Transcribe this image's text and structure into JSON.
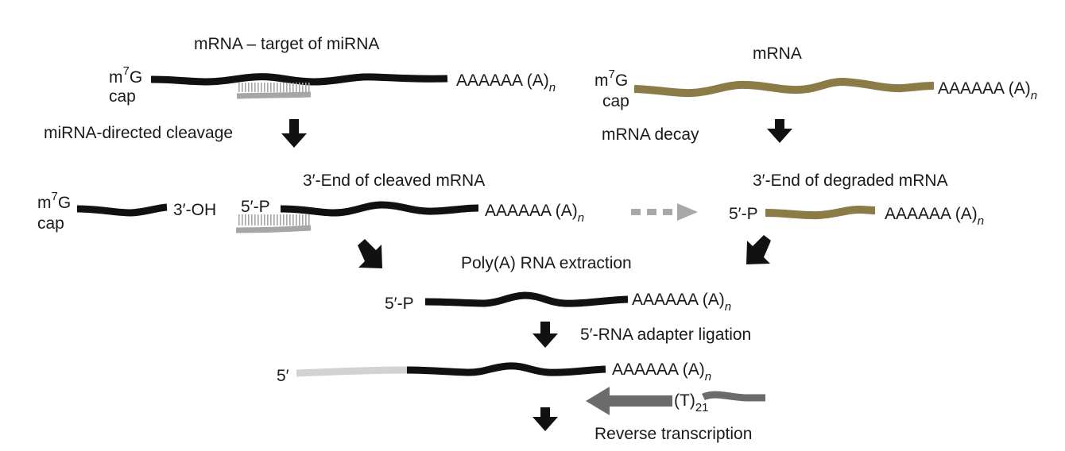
{
  "colors": {
    "target_mrna": "#111111",
    "decayed_mrna": "#8b7b47",
    "mirna": "#a6a6a6",
    "adapter": "#d2d2d2",
    "primer": "#6b6b6b",
    "arrow": "#111111",
    "dashed_arrow": "#a8a8a8",
    "text": "#1a1a1a"
  },
  "top_left": {
    "title": "mRNA – target of miRNA",
    "cap_m": "m",
    "cap_sup": "7",
    "cap_g": "G",
    "cap_word": "cap",
    "polya": "AAAAAA (A)",
    "polya_sub": "n",
    "step": "miRNA-directed cleavage"
  },
  "top_right": {
    "title": "mRNA",
    "cap_m": "m",
    "cap_sup": "7",
    "cap_g": "G",
    "cap_word": "cap",
    "polya": "AAAAAA (A)",
    "polya_sub": "n",
    "step": "mRNA decay"
  },
  "middle_left": {
    "cap_m": "m",
    "cap_sup": "7",
    "cap_g": "G",
    "cap_word": "cap",
    "oh_label": "3′-OH",
    "p_label": "5′-P",
    "title": "3′-End of cleaved mRNA",
    "polya": "AAAAAA (A)",
    "polya_sub": "n"
  },
  "middle_right": {
    "title": "3′-End of degraded mRNA",
    "p_label": "5′-P",
    "polya": "AAAAAA (A)",
    "polya_sub": "n"
  },
  "extraction": {
    "step": "Poly(A) RNA extraction",
    "p_label": "5′-P",
    "polya": "AAAAAA (A)",
    "polya_sub": "n",
    "ligation_step": "5′-RNA adapter ligation"
  },
  "bottom": {
    "five_label": "5′",
    "polya": "AAAAAA (A)",
    "polya_sub": "n",
    "primer": "(T)",
    "primer_sub": "21",
    "step": "Reverse transcription"
  }
}
